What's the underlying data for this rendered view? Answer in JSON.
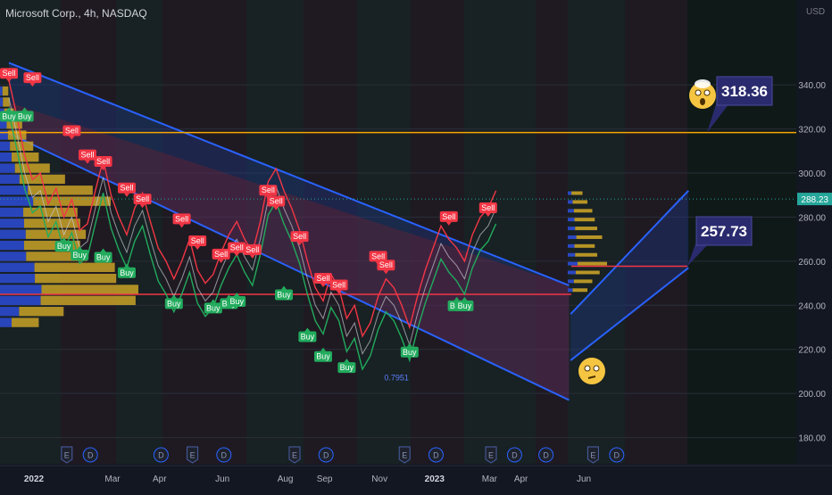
{
  "header": {
    "symbol_title": "Microsoft Corp., 4h, NASDAQ",
    "currency": "USD"
  },
  "colors": {
    "background": "#131722",
    "sell": "#f23645",
    "buy": "#22ab5d",
    "channel_blue": "#2962ff",
    "resistance": "#f7a600",
    "support": "#f23645",
    "callout_bg": "#2a2a6e",
    "profile_blue": "#2d4bd6",
    "profile_gold": "#c9a227"
  },
  "chart_data": {
    "type": "line",
    "title": "Microsoft Corp., 4h, NASDAQ",
    "ylabel": "USD",
    "ylim": [
      175,
      365
    ],
    "y_ticks": [
      180,
      200,
      220,
      240,
      260,
      280,
      300,
      320,
      340
    ],
    "x_labels": [
      "2022",
      "Mar",
      "Apr",
      "Jun",
      "Aug",
      "Sep",
      "Nov",
      "2023",
      "Mar",
      "Apr",
      "Jun"
    ],
    "x_label_index": [
      0,
      10,
      16,
      24,
      32,
      37,
      44,
      51,
      58,
      62,
      70
    ],
    "series": [
      {
        "values": [
          334,
          318,
          300,
          289,
          292,
          278,
          285,
          272,
          280,
          266,
          269,
          284,
          298,
          282,
          272,
          264,
          276,
          283,
          270,
          258,
          252,
          244,
          252,
          262,
          248,
          242,
          246,
          256,
          264,
          270,
          262,
          256,
          270,
          288,
          294,
          284,
          276,
          266,
          252,
          240,
          234,
          246,
          240,
          226,
          232,
          218,
          224,
          236,
          244,
          240,
          232,
          222,
          236,
          248,
          258,
          268,
          262,
          258,
          252,
          264,
          272,
          276,
          284
        ]
      }
    ],
    "resistance_level": 318.36,
    "support_level": 257.73,
    "last_price": 288.23,
    "sell_signals": [
      {
        "i": 0,
        "v": 342
      },
      {
        "i": 3,
        "v": 340
      },
      {
        "i": 8,
        "v": 316
      },
      {
        "i": 10,
        "v": 305
      },
      {
        "i": 12,
        "v": 302
      },
      {
        "i": 15,
        "v": 290
      },
      {
        "i": 17,
        "v": 285
      },
      {
        "i": 22,
        "v": 276
      },
      {
        "i": 24,
        "v": 266
      },
      {
        "i": 27,
        "v": 260
      },
      {
        "i": 29,
        "v": 263
      },
      {
        "i": 31,
        "v": 262
      },
      {
        "i": 33,
        "v": 289
      },
      {
        "i": 34,
        "v": 284
      },
      {
        "i": 37,
        "v": 268
      },
      {
        "i": 40,
        "v": 249
      },
      {
        "i": 42,
        "v": 246
      },
      {
        "i": 47,
        "v": 259
      },
      {
        "i": 48,
        "v": 255
      },
      {
        "i": 56,
        "v": 277
      },
      {
        "i": 61,
        "v": 281
      }
    ],
    "buy_signals": [
      {
        "i": 0,
        "v": 329
      },
      {
        "i": 2,
        "v": 329
      },
      {
        "i": 7,
        "v": 270
      },
      {
        "i": 9,
        "v": 266
      },
      {
        "i": 12,
        "v": 265
      },
      {
        "i": 15,
        "v": 258
      },
      {
        "i": 21,
        "v": 244
      },
      {
        "i": 26,
        "v": 242
      },
      {
        "i": 28,
        "v": 244
      },
      {
        "i": 29,
        "v": 245
      },
      {
        "i": 35,
        "v": 248
      },
      {
        "i": 38,
        "v": 229
      },
      {
        "i": 40,
        "v": 220
      },
      {
        "i": 43,
        "v": 215
      },
      {
        "i": 51,
        "v": 222
      },
      {
        "i": 57,
        "v": 243
      },
      {
        "i": 58,
        "v": 243
      }
    ],
    "fib_label": "0.7951",
    "volume_profile": [
      {
        "price": 337,
        "v": 0.06
      },
      {
        "price": 332,
        "v": 0.07
      },
      {
        "price": 327,
        "v": 0.1
      },
      {
        "price": 322,
        "v": 0.16
      },
      {
        "price": 317,
        "v": 0.19
      },
      {
        "price": 312,
        "v": 0.24
      },
      {
        "price": 307,
        "v": 0.28
      },
      {
        "price": 302,
        "v": 0.36
      },
      {
        "price": 297,
        "v": 0.47
      },
      {
        "price": 292,
        "v": 0.67
      },
      {
        "price": 287,
        "v": 0.8
      },
      {
        "price": 282,
        "v": 0.56
      },
      {
        "price": 277,
        "v": 0.58
      },
      {
        "price": 272,
        "v": 0.62
      },
      {
        "price": 267,
        "v": 0.58
      },
      {
        "price": 262,
        "v": 0.63
      },
      {
        "price": 257,
        "v": 0.83
      },
      {
        "price": 252,
        "v": 0.84
      },
      {
        "price": 247,
        "v": 1.0
      },
      {
        "price": 242,
        "v": 0.98
      },
      {
        "price": 237,
        "v": 0.46
      },
      {
        "price": 232,
        "v": 0.28
      }
    ],
    "event_markers": [
      {
        "letter": "E",
        "i": 6
      },
      {
        "letter": "D",
        "i": 9
      },
      {
        "letter": "D",
        "i": 18
      },
      {
        "letter": "E",
        "i": 22
      },
      {
        "letter": "D",
        "i": 26
      },
      {
        "letter": "E",
        "i": 35
      },
      {
        "letter": "D",
        "i": 39
      },
      {
        "letter": "E",
        "i": 49
      },
      {
        "letter": "D",
        "i": 53
      },
      {
        "letter": "E",
        "i": 60
      },
      {
        "letter": "D",
        "i": 63
      },
      {
        "letter": "D",
        "i": 67
      },
      {
        "letter": "E",
        "i": 73
      },
      {
        "letter": "D",
        "i": 76
      }
    ]
  }
}
